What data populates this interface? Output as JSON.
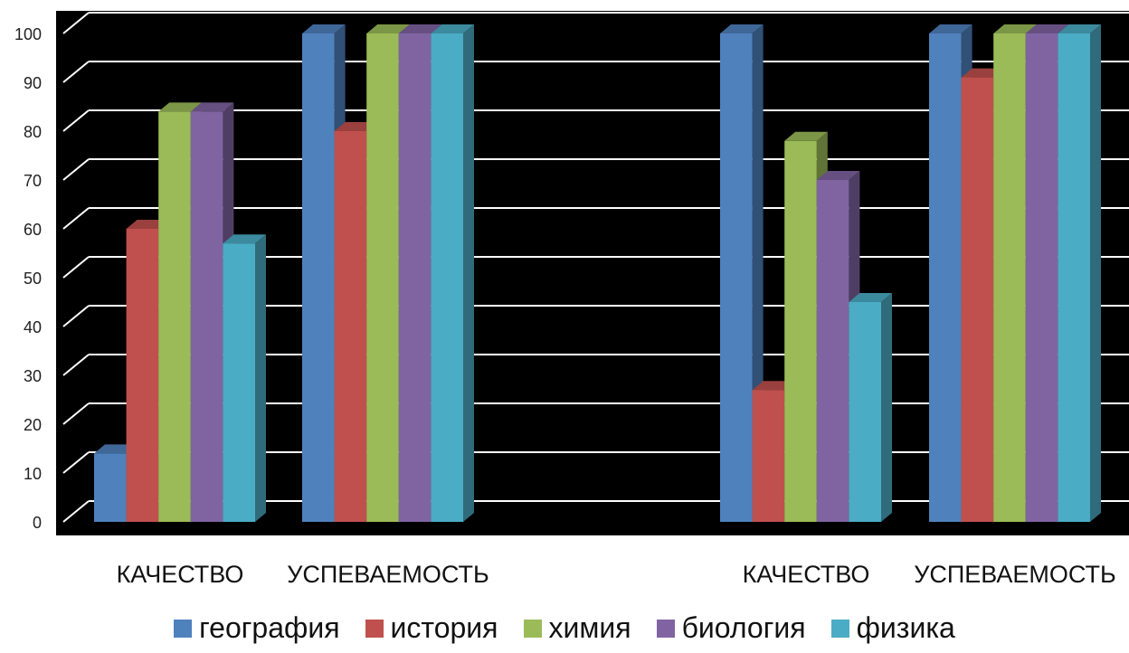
{
  "chart_data": {
    "type": "bar",
    "categories": [
      "КАЧЕСТВО",
      "УСПЕВАЕМОСТЬ",
      "КАЧЕСТВО",
      "УСПЕВАЕМОСТЬ"
    ],
    "series": [
      {
        "name": "география",
        "values": [
          14,
          100,
          100,
          100
        ],
        "color": "#4f81bd"
      },
      {
        "name": "история",
        "values": [
          60,
          80,
          27,
          91
        ],
        "color": "#c0504d"
      },
      {
        "name": "химия",
        "values": [
          84,
          100,
          78,
          100
        ],
        "color": "#9bbb59"
      },
      {
        "name": "биология",
        "values": [
          84,
          100,
          70,
          100
        ],
        "color": "#8064a2"
      },
      {
        "name": "физика",
        "values": [
          57,
          100,
          45,
          100
        ],
        "color": "#4bacc6"
      }
    ],
    "ylim": [
      0,
      100
    ],
    "yticks": [
      0,
      10,
      20,
      30,
      40,
      50,
      60,
      70,
      80,
      90,
      100
    ],
    "grid": true,
    "legend_position": "bottom",
    "background": "#000000",
    "gridline_color": "#ffffff"
  }
}
